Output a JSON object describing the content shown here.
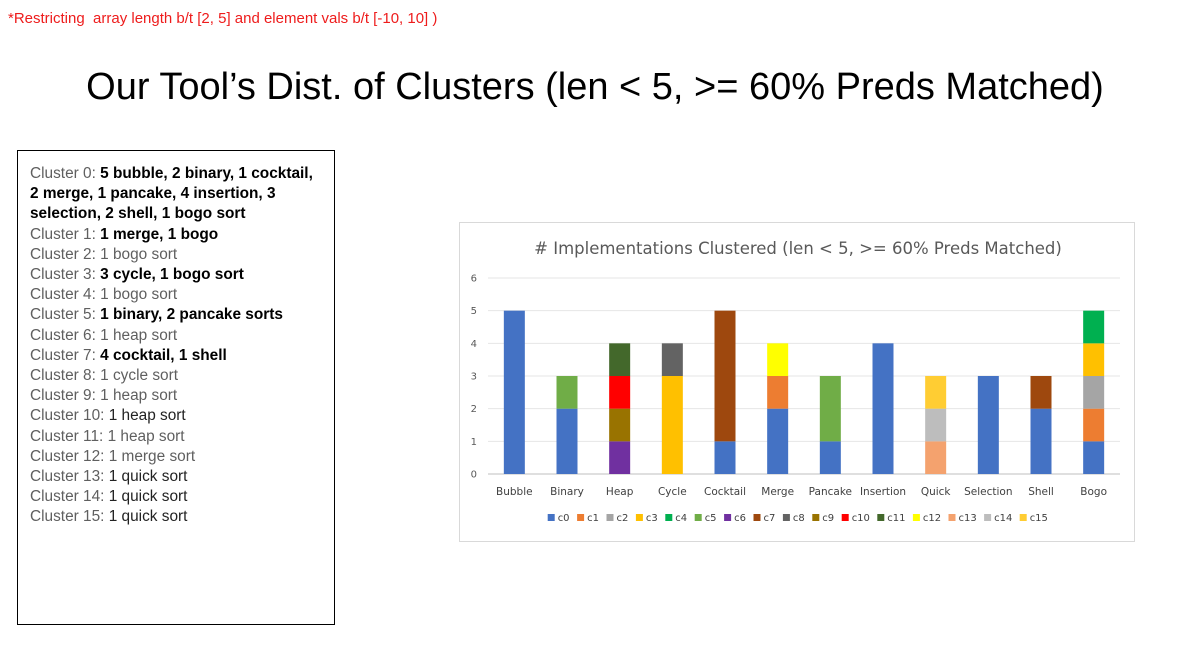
{
  "note": "*Restricting  array length b/t [2, 5] and element vals b/t [-10, 10] )",
  "slide_title": "Our Tool’s Dist. of Clusters (len < 5, >= 60% Preds Matched)",
  "clusters": [
    {
      "label": "Cluster 0:",
      "text": "5 bubble, 2 binary, 1 cocktail, 2 merge, 1 pancake, 4 insertion, 3 selection, 2 shell, 1 bogo sort",
      "style": "bold"
    },
    {
      "label": "Cluster 1:",
      "text": "1 merge, 1 bogo",
      "style": "bold"
    },
    {
      "label": "Cluster 2:",
      "text": "1 bogo sort",
      "style": "light"
    },
    {
      "label": "Cluster 3:",
      "text": "3 cycle, 1 bogo sort",
      "style": "bold"
    },
    {
      "label": "Cluster 4:",
      "text": "1 bogo sort",
      "style": "light"
    },
    {
      "label": "Cluster 5:",
      "text": "1 binary, 2 pancake sorts",
      "style": "bold"
    },
    {
      "label": "Cluster 6:",
      "text": "1 heap sort",
      "style": "light"
    },
    {
      "label": "Cluster 7:",
      "text": "4 cocktail, 1 shell",
      "style": "bold"
    },
    {
      "label": "Cluster 8:",
      "text": "1 cycle sort",
      "style": "light"
    },
    {
      "label": "Cluster 9:",
      "text": "1 heap sort",
      "style": "light"
    },
    {
      "label": "Cluster 10:",
      "text": "1 heap sort",
      "style": "normal"
    },
    {
      "label": "Cluster 11:",
      "text": "1 heap sort",
      "style": "light"
    },
    {
      "label": "Cluster 12:",
      "text": "1 merge sort",
      "style": "light"
    },
    {
      "label": "Cluster 13:",
      "text": "1 quick sort",
      "style": "normal"
    },
    {
      "label": "Cluster 14:",
      "text": "1 quick sort",
      "style": "normal"
    },
    {
      "label": "Cluster 15:",
      "text": "1 quick sort",
      "style": "normal"
    }
  ],
  "chart_data": {
    "type": "bar",
    "stacked": true,
    "title": "# Implementations Clustered (len < 5, >= 60% Preds Matched)",
    "xlabel": "",
    "ylabel": "",
    "ylim": [
      0,
      6
    ],
    "yticks": [
      0,
      1,
      2,
      3,
      4,
      5,
      6
    ],
    "grid": true,
    "legend_position": "bottom",
    "categories": [
      "Bubble",
      "Binary",
      "Heap",
      "Cycle",
      "Cocktail",
      "Merge",
      "Pancake",
      "Insertion",
      "Quick",
      "Selection",
      "Shell",
      "Bogo"
    ],
    "series": [
      {
        "name": "c0",
        "color": "#4472c4",
        "values": [
          5,
          2,
          0,
          0,
          1,
          2,
          1,
          4,
          0,
          3,
          2,
          1
        ]
      },
      {
        "name": "c1",
        "color": "#ed7d31",
        "values": [
          0,
          0,
          0,
          0,
          0,
          1,
          0,
          0,
          0,
          0,
          0,
          1
        ]
      },
      {
        "name": "c2",
        "color": "#a5a5a5",
        "values": [
          0,
          0,
          0,
          0,
          0,
          0,
          0,
          0,
          0,
          0,
          0,
          1
        ]
      },
      {
        "name": "c3",
        "color": "#ffc000",
        "values": [
          0,
          0,
          0,
          3,
          0,
          0,
          0,
          0,
          0,
          0,
          0,
          1
        ]
      },
      {
        "name": "c4",
        "color": "#00b050",
        "values": [
          0,
          0,
          0,
          0,
          0,
          0,
          0,
          0,
          0,
          0,
          0,
          1
        ]
      },
      {
        "name": "c5",
        "color": "#70ad47",
        "values": [
          0,
          1,
          0,
          0,
          0,
          0,
          2,
          0,
          0,
          0,
          0,
          0
        ]
      },
      {
        "name": "c6",
        "color": "#7030a0",
        "values": [
          0,
          0,
          1,
          0,
          0,
          0,
          0,
          0,
          0,
          0,
          0,
          0
        ]
      },
      {
        "name": "c7",
        "color": "#9e480e",
        "values": [
          0,
          0,
          0,
          0,
          4,
          0,
          0,
          0,
          0,
          0,
          1,
          0
        ]
      },
      {
        "name": "c8",
        "color": "#636363",
        "values": [
          0,
          0,
          0,
          1,
          0,
          0,
          0,
          0,
          0,
          0,
          0,
          0
        ]
      },
      {
        "name": "c9",
        "color": "#997300",
        "values": [
          0,
          0,
          1,
          0,
          0,
          0,
          0,
          0,
          0,
          0,
          0,
          0
        ]
      },
      {
        "name": "c10",
        "color": "#ff0000",
        "values": [
          0,
          0,
          1,
          0,
          0,
          0,
          0,
          0,
          0,
          0,
          0,
          0
        ]
      },
      {
        "name": "c11",
        "color": "#43682b",
        "values": [
          0,
          0,
          1,
          0,
          0,
          0,
          0,
          0,
          0,
          0,
          0,
          0
        ]
      },
      {
        "name": "c12",
        "color": "#ffff00",
        "values": [
          0,
          0,
          0,
          0,
          0,
          1,
          0,
          0,
          0,
          0,
          0,
          0
        ]
      },
      {
        "name": "c13",
        "color": "#f4a26e",
        "values": [
          0,
          0,
          0,
          0,
          0,
          0,
          0,
          0,
          1,
          0,
          0,
          0
        ]
      },
      {
        "name": "c14",
        "color": "#bdbdbd",
        "values": [
          0,
          0,
          0,
          0,
          0,
          0,
          0,
          0,
          1,
          0,
          0,
          0
        ]
      },
      {
        "name": "c15",
        "color": "#ffcd33",
        "values": [
          0,
          0,
          0,
          0,
          0,
          0,
          0,
          0,
          1,
          0,
          0,
          0
        ]
      }
    ]
  }
}
